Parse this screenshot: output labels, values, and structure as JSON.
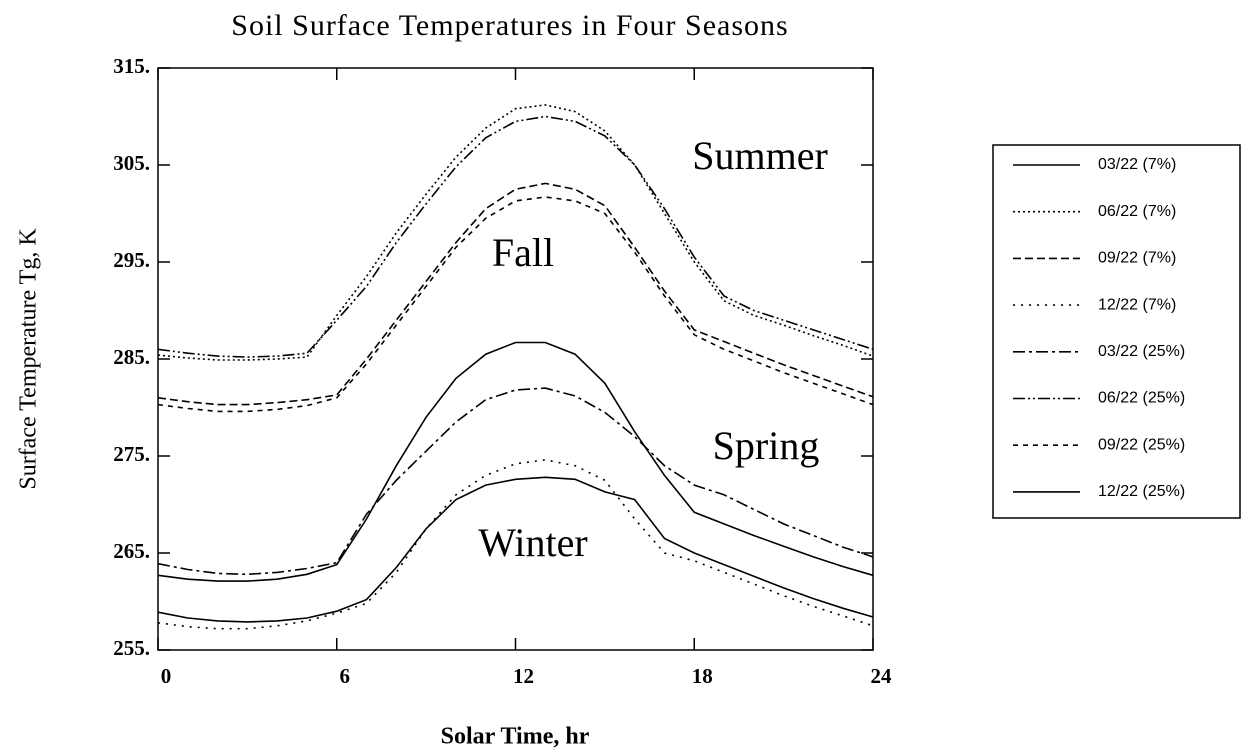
{
  "chart_data": {
    "type": "line",
    "title": "Soil Surface Temperatures in Four Seasons",
    "xlabel": "Solar Time, hr",
    "ylabel": "Surface Temperature Tg, K",
    "x": [
      0,
      1,
      2,
      3,
      4,
      5,
      6,
      7,
      8,
      9,
      10,
      11,
      12,
      13,
      14,
      15,
      16,
      17,
      18,
      19,
      20,
      21,
      22,
      23,
      24
    ],
    "xlim": [
      0,
      24
    ],
    "xticks": [
      0,
      6,
      12,
      18,
      24
    ],
    "ylim": [
      255,
      315
    ],
    "yticks": [
      {
        "value": 255,
        "label": "255."
      },
      {
        "value": 265,
        "label": "265."
      },
      {
        "value": 275,
        "label": "275."
      },
      {
        "value": 285,
        "label": "285."
      },
      {
        "value": 295,
        "label": "295."
      },
      {
        "value": 305,
        "label": "305."
      },
      {
        "value": 315,
        "label": "315."
      }
    ],
    "annotations": [
      "Summer",
      "Fall",
      "Spring",
      "Winter"
    ],
    "legend": "right",
    "series": [
      {
        "name": "03/22 (7%)",
        "color": "#000000",
        "dash": "solid",
        "values": [
          262.7,
          262.3,
          262.1,
          262.1,
          262.3,
          262.8,
          263.8,
          268.5,
          274,
          279,
          283,
          285.5,
          286.7,
          286.7,
          285.5,
          282.5,
          277.5,
          273,
          269.2,
          268,
          266.8,
          265.7,
          264.6,
          263.6,
          262.7
        ]
      },
      {
        "name": "06/22 (7%)",
        "color": "#000000",
        "dash": "dotted",
        "values": [
          285.4,
          285.1,
          284.9,
          284.9,
          285,
          285.2,
          289.5,
          293.5,
          298,
          302,
          305.8,
          308.8,
          310.8,
          311.2,
          310.5,
          308.5,
          305,
          300,
          295,
          291,
          289.5,
          288.5,
          287.4,
          286.4,
          285.3
        ]
      },
      {
        "name": "09/22 (7%)",
        "color": "#000000",
        "dash": "dashed",
        "values": [
          281,
          280.6,
          280.3,
          280.3,
          280.5,
          280.8,
          281.3,
          285,
          289,
          293,
          297,
          300.5,
          302.5,
          303.1,
          302.5,
          300.8,
          296.5,
          292,
          288,
          286.8,
          285.6,
          284.4,
          283.3,
          282.2,
          281.1
        ]
      },
      {
        "name": "12/22 (7%)",
        "color": "#000000",
        "dash": "sparse-dotted",
        "values": [
          257.8,
          257.4,
          257.2,
          257.2,
          257.5,
          258,
          258.8,
          259.8,
          263,
          267.5,
          271,
          273,
          274.2,
          274.6,
          274,
          272.5,
          268.5,
          265,
          264.2,
          263,
          261.8,
          260.6,
          259.5,
          258.5,
          257.5
        ]
      },
      {
        "name": "03/22 (25%)",
        "color": "#000000",
        "dash": "dashdot",
        "values": [
          263.9,
          263.3,
          262.9,
          262.8,
          263,
          263.4,
          264,
          269,
          272.5,
          275.5,
          278.5,
          280.8,
          281.8,
          282,
          281.2,
          279.5,
          277,
          274,
          272,
          271,
          269.5,
          268,
          266.8,
          265.6,
          264.6
        ]
      },
      {
        "name": "06/22 (25%)",
        "color": "#000000",
        "dash": "dashdotdot",
        "values": [
          286,
          285.6,
          285.3,
          285.2,
          285.3,
          285.6,
          289,
          292.5,
          297,
          301,
          304.8,
          307.8,
          309.5,
          310,
          309.5,
          308,
          305,
          300.5,
          295.5,
          291.5,
          290,
          289,
          288,
          287,
          286
        ]
      },
      {
        "name": "09/22 (25%)",
        "color": "#000000",
        "dash": "short-dashed",
        "values": [
          280.3,
          279.9,
          279.6,
          279.6,
          279.8,
          280.2,
          281,
          284.5,
          288.5,
          292.5,
          296.5,
          299.5,
          301.3,
          301.7,
          301.3,
          300,
          296,
          291.5,
          287.5,
          286,
          284.8,
          283.6,
          282.5,
          281.4,
          280.3
        ]
      },
      {
        "name": "12/22 (25%)",
        "color": "#000000",
        "dash": "solid",
        "values": [
          258.9,
          258.3,
          258,
          257.9,
          258,
          258.3,
          259,
          260.2,
          263.5,
          267.5,
          270.5,
          272,
          272.6,
          272.8,
          272.6,
          271.3,
          270.5,
          266.5,
          265,
          263.8,
          262.6,
          261.4,
          260.3,
          259.3,
          258.4
        ]
      }
    ]
  }
}
